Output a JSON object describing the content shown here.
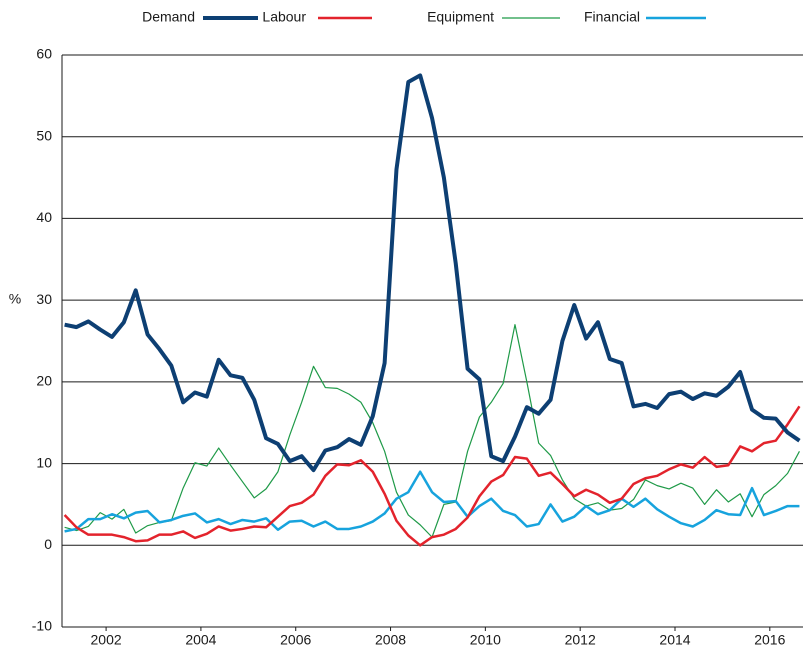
{
  "chart_data": {
    "type": "line",
    "y_label": "%",
    "x": [
      2001.125,
      2001.375,
      2001.625,
      2001.875,
      2002.125,
      2002.375,
      2002.625,
      2002.875,
      2003.125,
      2003.375,
      2003.625,
      2003.875,
      2004.125,
      2004.375,
      2004.625,
      2004.875,
      2005.125,
      2005.375,
      2005.625,
      2005.875,
      2006.125,
      2006.375,
      2006.625,
      2006.875,
      2007.125,
      2007.375,
      2007.625,
      2007.875,
      2008.125,
      2008.375,
      2008.625,
      2008.875,
      2009.125,
      2009.375,
      2009.625,
      2009.875,
      2010.125,
      2010.375,
      2010.625,
      2010.875,
      2011.125,
      2011.375,
      2011.625,
      2011.875,
      2012.125,
      2012.375,
      2012.625,
      2012.875,
      2013.125,
      2013.375,
      2013.625,
      2013.875,
      2014.125,
      2014.375,
      2014.625,
      2014.875,
      2015.125,
      2015.375,
      2015.625,
      2015.875,
      2016.125,
      2016.375,
      2016.625
    ],
    "series": [
      {
        "name": "Demand",
        "color": "#0d3f73",
        "values": [
          27.0,
          26.7,
          27.4,
          26.4,
          25.5,
          27.3,
          31.2,
          25.8,
          24.0,
          22.0,
          17.5,
          18.7,
          18.2,
          22.7,
          20.8,
          20.5,
          17.8,
          13.1,
          12.4,
          10.3,
          10.9,
          9.2,
          11.6,
          12.0,
          13.0,
          12.3,
          15.8,
          22.3,
          46.0,
          56.7,
          57.5,
          52.3,
          45.0,
          34.5,
          21.6,
          20.3,
          10.9,
          10.3,
          13.3,
          16.9,
          16.1,
          17.8,
          25.0,
          29.4,
          25.3,
          27.3,
          22.8,
          22.3,
          17.0,
          17.3,
          16.8,
          18.5,
          18.8,
          17.9,
          18.6,
          18.3,
          19.4,
          21.2,
          16.6,
          15.6,
          15.5,
          13.8,
          12.8
        ]
      },
      {
        "name": "Labour",
        "color": "#e3232c",
        "values": [
          3.7,
          2.2,
          1.3,
          1.3,
          1.3,
          1.0,
          0.5,
          0.6,
          1.3,
          1.3,
          1.7,
          0.9,
          1.4,
          2.3,
          1.8,
          2.0,
          2.3,
          2.2,
          3.5,
          4.8,
          5.2,
          6.2,
          8.5,
          9.9,
          9.8,
          10.4,
          9.0,
          6.3,
          3.0,
          1.2,
          0.0,
          1.0,
          1.3,
          2.0,
          3.4,
          6.0,
          7.8,
          8.6,
          10.8,
          10.6,
          8.5,
          8.9,
          7.5,
          6.0,
          6.8,
          6.2,
          5.2,
          5.7,
          7.5,
          8.2,
          8.5,
          9.3,
          9.9,
          9.5,
          10.8,
          9.6,
          9.8,
          12.1,
          11.5,
          12.5,
          12.8,
          14.8,
          17.0
        ]
      },
      {
        "name": "Equipment",
        "color": "#1f9a48",
        "values": [
          2.2,
          1.8,
          2.3,
          4.0,
          3.2,
          4.4,
          1.5,
          2.4,
          2.8,
          3.0,
          7.0,
          10.1,
          9.7,
          11.9,
          9.8,
          7.8,
          5.8,
          6.9,
          9.0,
          13.5,
          17.5,
          21.9,
          19.3,
          19.2,
          18.5,
          17.5,
          15.0,
          11.5,
          6.5,
          3.7,
          2.5,
          1.0,
          5.0,
          5.3,
          11.5,
          15.7,
          17.5,
          19.8,
          27.0,
          20.0,
          12.5,
          11.0,
          8.0,
          5.7,
          4.8,
          5.2,
          4.3,
          4.5,
          5.6,
          8.0,
          7.3,
          6.9,
          7.6,
          7.0,
          5.0,
          6.8,
          5.3,
          6.3,
          3.5,
          6.2,
          7.3,
          8.8,
          11.5
        ]
      },
      {
        "name": "Financial",
        "color": "#17a3dd",
        "values": [
          1.7,
          2.0,
          3.2,
          3.2,
          3.8,
          3.3,
          4.0,
          4.2,
          2.8,
          3.1,
          3.6,
          3.9,
          2.8,
          3.2,
          2.6,
          3.1,
          2.9,
          3.3,
          1.9,
          2.9,
          3.0,
          2.3,
          2.9,
          2.0,
          2.0,
          2.3,
          2.9,
          3.9,
          5.7,
          6.5,
          9.0,
          6.5,
          5.3,
          5.4,
          3.5,
          4.8,
          5.7,
          4.2,
          3.7,
          2.3,
          2.6,
          5.0,
          2.9,
          3.5,
          4.8,
          3.8,
          4.3,
          5.7,
          4.7,
          5.7,
          4.4,
          3.5,
          2.7,
          2.3,
          3.1,
          4.3,
          3.8,
          3.7,
          7.0,
          3.7,
          4.2,
          4.8,
          4.8
        ]
      }
    ],
    "xlim": [
      2001.07,
      2016.7
    ],
    "xticks": [
      2002,
      2004,
      2006,
      2008,
      2010,
      2012,
      2014,
      2016
    ],
    "ylim": [
      -10,
      60
    ],
    "yticks": [
      -10,
      0,
      10,
      20,
      30,
      40,
      50,
      60
    ],
    "grid": true,
    "legend": "top"
  }
}
